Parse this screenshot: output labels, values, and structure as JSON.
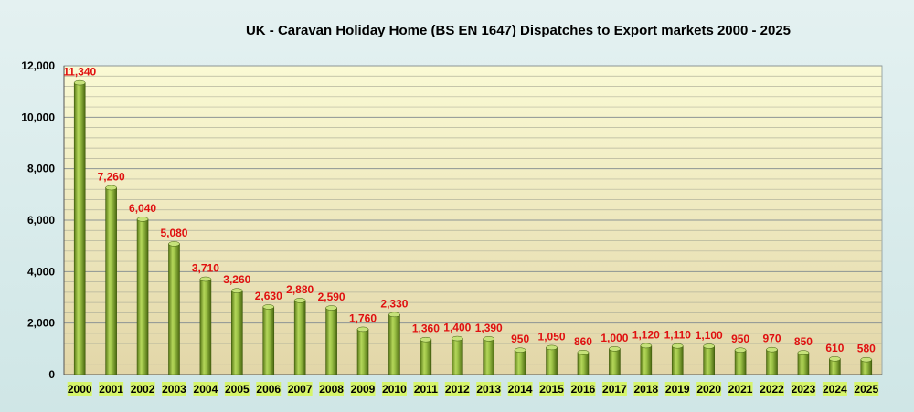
{
  "chart_data": {
    "type": "bar",
    "title": "UK - Caravan Holiday Home (BS EN 1647) Dispatches to Export markets 2000 -  2025",
    "xlabel": "",
    "ylabel": "",
    "ylim": [
      0,
      12000
    ],
    "yticks": [
      0,
      2000,
      4000,
      6000,
      8000,
      10000,
      12000
    ],
    "ytick_labels": [
      "0",
      "2,000",
      "4,000",
      "6,000",
      "8,000",
      "10,000",
      "12,000"
    ],
    "grid": true,
    "legend": "none",
    "categories": [
      "2000",
      "2001",
      "2002",
      "2003",
      "2004",
      "2005",
      "2006",
      "2007",
      "2008",
      "2009",
      "2010",
      "2011",
      "2012",
      "2013",
      "2014",
      "2015",
      "2016",
      "2017",
      "2018",
      "2019",
      "2020",
      "2021",
      "2022",
      "2023",
      "2024",
      "2025"
    ],
    "values": [
      11340,
      7260,
      6040,
      5080,
      3710,
      3260,
      2630,
      2880,
      2590,
      1760,
      2330,
      1360,
      1400,
      1390,
      950,
      1050,
      860,
      1000,
      1120,
      1110,
      1100,
      950,
      970,
      850,
      610,
      580
    ],
    "data_labels": [
      "11,340",
      "7,260",
      "6,040",
      "5,080",
      "3,710",
      "3,260",
      "2,630",
      "2,880",
      "2,590",
      "1,760",
      "2,330",
      "1,360",
      "1,400",
      "1,390",
      "950",
      "1,050",
      "860",
      "1,000",
      "1,120",
      "1,110",
      "1,100",
      "950",
      "970",
      "850",
      "610",
      "580"
    ],
    "colors": {
      "bar": "#8cb43c",
      "bar_dark": "#4f6e12",
      "data_label": "#e01010",
      "plot_top": "#fafad4",
      "plot_bottom": "#e2d6a8",
      "category_label_bg": "#d6f56a",
      "page_bg": "#d8ebeb"
    }
  }
}
